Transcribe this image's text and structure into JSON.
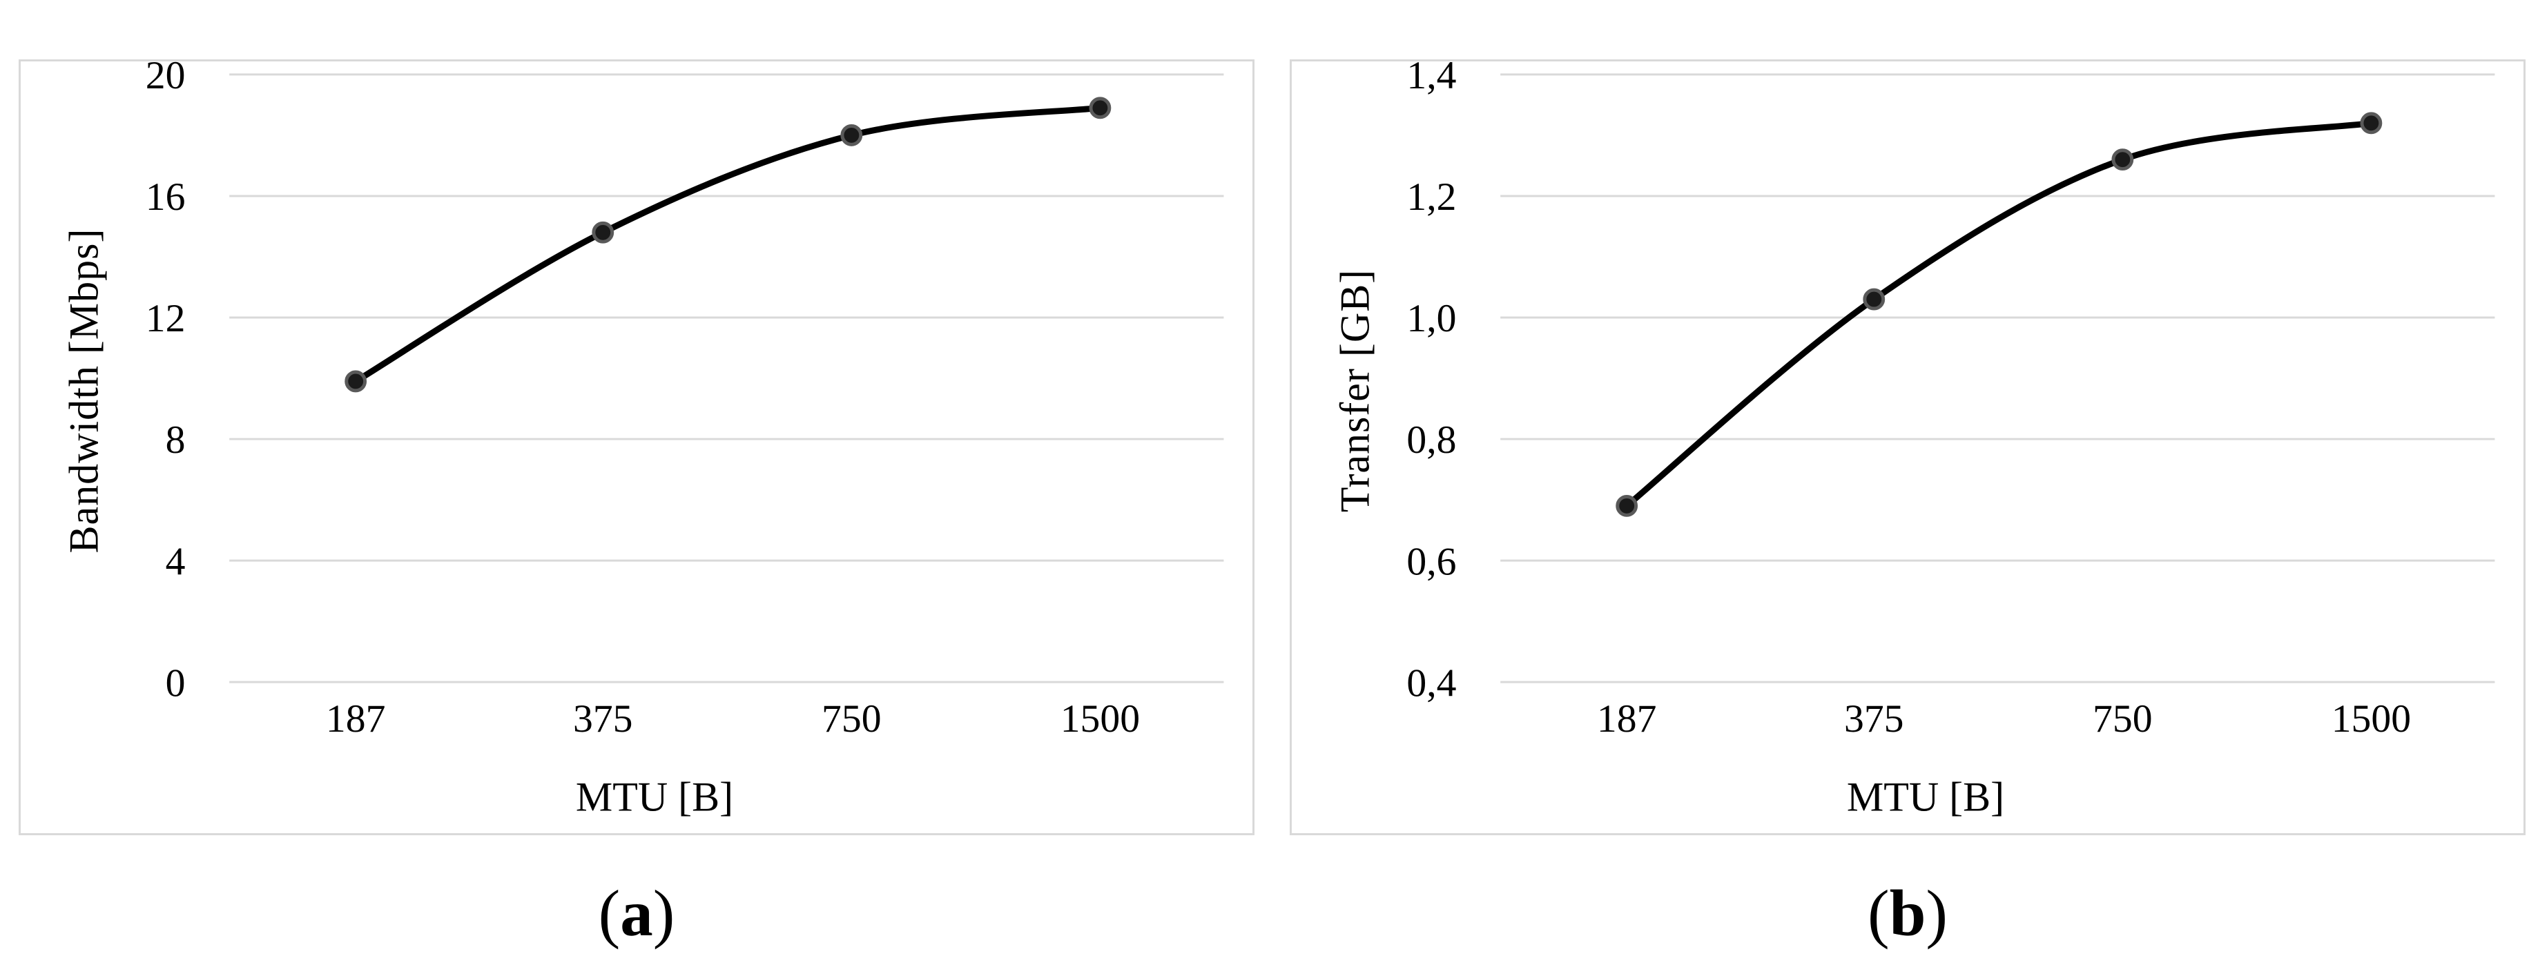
{
  "figure": {
    "background": "#ffffff"
  },
  "colors": {
    "line": "#000000",
    "marker_fill": "#1a1a1a",
    "marker_ring": "#595959",
    "grid": "#d9d9d9",
    "panel_border": "#d9d9d9",
    "text": "#000000"
  },
  "captions": [
    {
      "prefix": "(",
      "letter": "a",
      "suffix": ")"
    },
    {
      "prefix": "(",
      "letter": "b",
      "suffix": ")"
    }
  ],
  "chart_data": [
    {
      "type": "line",
      "title": "",
      "categories": [
        "187",
        "375",
        "750",
        "1500"
      ],
      "series": [
        {
          "name": "Bandwidth",
          "values": [
            9.9,
            14.8,
            18.0,
            18.9
          ]
        }
      ],
      "xlabel": "MTU [B]",
      "ylabel": "Bandwidth [Mbps]",
      "ylim": [
        0,
        20
      ],
      "y_tick_values": [
        20,
        16,
        12,
        8,
        4,
        0
      ],
      "y_tick_labels": [
        "20",
        "16",
        "12",
        "8",
        "4",
        "0"
      ],
      "grid": true,
      "legend": "none",
      "smooth": true,
      "marker": "circle"
    },
    {
      "type": "line",
      "title": "",
      "categories": [
        "187",
        "375",
        "750",
        "1500"
      ],
      "series": [
        {
          "name": "Transfer",
          "values": [
            0.69,
            1.03,
            1.26,
            1.32
          ]
        }
      ],
      "xlabel": "MTU [B]",
      "ylabel": "Transfer [GB]",
      "ylim": [
        0.4,
        1.4
      ],
      "y_tick_values": [
        1.4,
        1.2,
        1.0,
        0.8,
        0.6,
        0.4
      ],
      "y_tick_labels": [
        "1,4",
        "1,2",
        "1,0",
        "0,8",
        "0,6",
        "0,4"
      ],
      "grid": true,
      "legend": "none",
      "smooth": true,
      "marker": "circle"
    }
  ]
}
